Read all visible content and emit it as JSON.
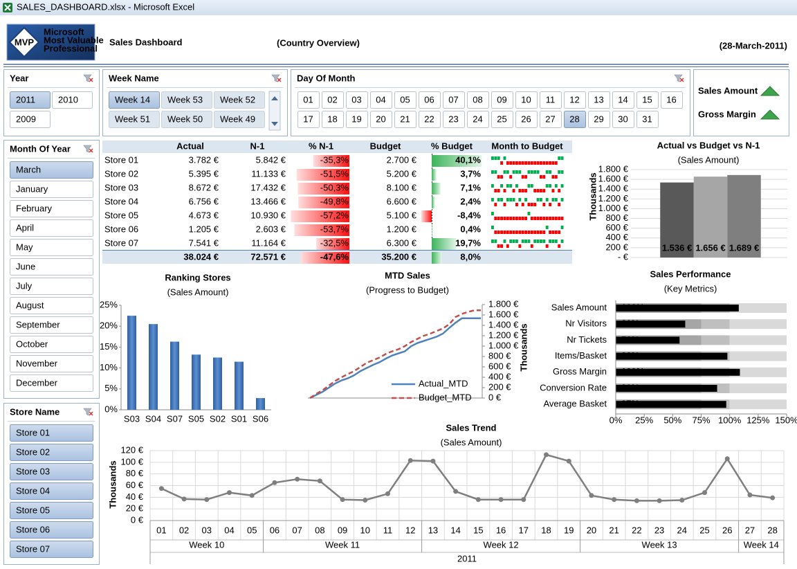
{
  "window": {
    "title": "SALES_DASHBOARD.xlsx - Microsoft Excel"
  },
  "header": {
    "logo": {
      "badge": "MVP",
      "lines": [
        "Microsoft",
        "Most Valuable",
        "Professional"
      ]
    },
    "title": "Sales  Dashboard",
    "subtitle": "(Country Overview)",
    "date": "(28-March-2011)"
  },
  "slicers": {
    "year": {
      "title": "Year",
      "items": [
        "2011",
        "2010",
        "2009"
      ],
      "selected": [
        0
      ]
    },
    "week": {
      "title": "Week Name",
      "items": [
        "Week 14",
        "Week 53",
        "Week 52",
        "Week 51",
        "Week 50",
        "Week 49"
      ],
      "selected": [
        0
      ],
      "dimmed": [
        1,
        2,
        3,
        4,
        5
      ]
    },
    "day": {
      "title": "Day Of Month",
      "items": [
        "01",
        "02",
        "03",
        "04",
        "05",
        "06",
        "07",
        "08",
        "09",
        "10",
        "11",
        "12",
        "13",
        "14",
        "15",
        "16",
        "17",
        "18",
        "19",
        "20",
        "21",
        "22",
        "23",
        "24",
        "25",
        "26",
        "27",
        "28",
        "29",
        "30",
        "31"
      ],
      "selected": [
        27
      ]
    },
    "month": {
      "title": "Month Of Year",
      "items": [
        "March",
        "January",
        "February",
        "April",
        "May",
        "June",
        "July",
        "August",
        "September",
        "October",
        "November",
        "December"
      ],
      "selected": [
        0
      ]
    },
    "store": {
      "title": "Store Name",
      "items": [
        "Store 01",
        "Store 02",
        "Store 03",
        "Store 04",
        "Store 05",
        "Store 06",
        "Store 07"
      ],
      "selected": [
        0,
        1,
        2,
        3,
        4,
        5,
        6
      ]
    }
  },
  "indicators": {
    "items": [
      {
        "label": "Sales Amount",
        "trend": "up",
        "color": "#3fa34d"
      },
      {
        "label": "Gross Margin",
        "trend": "up",
        "color": "#3fa34d"
      }
    ]
  },
  "table": {
    "headers": [
      "Actual",
      "N-1",
      "% N-1",
      "Budget",
      "% Budget",
      "Month to Budget"
    ],
    "stores": [
      "Store 01",
      "Store 02",
      "Store 03",
      "Store 04",
      "Store 05",
      "Store 06",
      "Store 07"
    ],
    "actual": [
      "3.782 €",
      "5.395 €",
      "8.672 €",
      "6.756 €",
      "4.673 €",
      "1.205 €",
      "7.541 €"
    ],
    "n1": [
      "5.842 €",
      "11.133 €",
      "17.432 €",
      "13.466 €",
      "10.930 €",
      "2.603 €",
      "11.164 €"
    ],
    "pct_n1": {
      "values": [
        -35.3,
        -51.5,
        -50.3,
        -49.8,
        -57.2,
        -53.7,
        -32.5
      ],
      "value_labels": [
        "-35,3%",
        "-51,5%",
        "-50,3%",
        "-49,8%",
        "-57,2%",
        "-53,7%",
        "-32,5%"
      ]
    },
    "budget": [
      "2.700 €",
      "5.200 €",
      "8.100 €",
      "6.600 €",
      "5.100 €",
      "1.200 €",
      "6.300 €"
    ],
    "pct_budget": {
      "values": [
        40.1,
        3.7,
        7.1,
        2.4,
        -8.4,
        0.4,
        19.7
      ],
      "value_labels": [
        "40,1%",
        "3,7%",
        "7,1%",
        "2,4%",
        "-8,4%",
        "0,4%",
        "19,7%"
      ]
    },
    "month_to_budget": [
      [
        1,
        1,
        1,
        -1,
        1,
        -1,
        -1,
        -1,
        -1,
        -1,
        -1,
        -1,
        -1,
        -1,
        -1,
        -1,
        -1,
        -1,
        -1,
        -1,
        -1,
        -1,
        1,
        1
      ],
      [
        1,
        1,
        -1,
        -1,
        1,
        1,
        -1,
        1,
        1,
        1,
        -1,
        -1,
        1,
        1,
        1,
        1,
        -1,
        -1,
        1,
        1,
        -1,
        -1,
        1,
        1
      ],
      [
        1,
        -1,
        -1,
        1,
        -1,
        1,
        1,
        -1,
        1,
        -1,
        -1,
        -1,
        1,
        1,
        -1,
        -1,
        -1,
        -1,
        1,
        1,
        -1,
        1,
        -1,
        1
      ],
      [
        1,
        -1,
        1,
        1,
        -1,
        1,
        1,
        1,
        -1,
        1,
        -1,
        1,
        -1,
        -1,
        -1,
        1,
        1,
        -1,
        1,
        -1,
        1,
        1,
        -1,
        1
      ],
      [
        1,
        -1,
        -1,
        -1,
        -1,
        -1,
        -1,
        -1,
        -1,
        -1,
        -1,
        -1,
        1,
        -1,
        -1,
        -1,
        -1,
        -1,
        -1,
        -1,
        -1,
        -1,
        -1,
        -1
      ],
      [
        1,
        -1,
        -1,
        -1,
        -1,
        -1,
        -1,
        -1,
        -1,
        -1,
        -1,
        -1,
        -1,
        -1,
        -1,
        -1,
        -1,
        -1,
        1,
        -1,
        -1,
        -1,
        -1,
        1
      ],
      [
        1,
        1,
        -1,
        -1,
        1,
        -1,
        1,
        1,
        1,
        -1,
        1,
        1,
        1,
        -1,
        1,
        1,
        1,
        1,
        -1,
        1,
        1,
        1,
        -1,
        1
      ]
    ],
    "total": {
      "actual": "38.024 €",
      "n1": "72.571 €",
      "pct_n1": {
        "value": -47.6,
        "label": "-47,6%"
      },
      "budget": "35.200 €",
      "pct_budget": {
        "value": 8.0,
        "label": "8,0%"
      }
    }
  },
  "charts": {
    "actual_vs_budget": {
      "type": "bar",
      "title": "Actual vs Budget vs N-1",
      "subtitle": "(Sales Amount)",
      "y_label": "Thousands",
      "values": [
        1536,
        1656,
        1689
      ],
      "value_labels": [
        "1.536 €",
        "1.656 €",
        "1.689 €"
      ],
      "colors": [
        "#595959",
        "#a6a6a6",
        "#7f7f7f"
      ],
      "ylim": [
        0,
        1800
      ],
      "grid": true,
      "yticks": [
        {
          "value": 0,
          "label": "- €"
        },
        {
          "value": 200,
          "label": "200 €"
        },
        {
          "value": 400,
          "label": "400 €"
        },
        {
          "value": 600,
          "label": "600 €"
        },
        {
          "value": 800,
          "label": "800 €"
        },
        {
          "value": 1000,
          "label": "1.000 €"
        },
        {
          "value": 1200,
          "label": "1.200 €"
        },
        {
          "value": 1400,
          "label": "1.400 €"
        },
        {
          "value": 1600,
          "label": "1.600 €"
        },
        {
          "value": 1800,
          "label": "1.800 €"
        }
      ]
    },
    "ranking": {
      "type": "bar",
      "title": "Ranking Stores",
      "subtitle": "(Sales Amount)",
      "categories": [
        "S03",
        "S04",
        "S07",
        "S05",
        "S02",
        "S01",
        "S06"
      ],
      "values": [
        22.5,
        20.5,
        16.3,
        13.2,
        12.5,
        11.5,
        2.8
      ],
      "color": "#4f81bd",
      "ylim": [
        0,
        25
      ],
      "yticks": [
        {
          "value": 0,
          "label": "0%"
        },
        {
          "value": 5,
          "label": "5%"
        },
        {
          "value": 10,
          "label": "10%"
        },
        {
          "value": 15,
          "label": "15%"
        },
        {
          "value": 20,
          "label": "20%"
        },
        {
          "value": 25,
          "label": "25%"
        }
      ]
    },
    "mtd": {
      "type": "line",
      "title": "MTD Sales",
      "subtitle": "(Progress to Budget)",
      "y_label": "Thousands",
      "axis_side": "right",
      "series": [
        {
          "name": "Actual_MTD",
          "color": "#4f81bd",
          "dash": false,
          "values": [
            0,
            60,
            120,
            200,
            280,
            340,
            380,
            440,
            520,
            580,
            640,
            690,
            760,
            820,
            860,
            900,
            1000,
            1060,
            1100,
            1140,
            1180,
            1240,
            1350,
            1450,
            1536,
            1536,
            1536,
            1536
          ]
        },
        {
          "name": "Budget_MTD",
          "color": "#c0504d",
          "dash": true,
          "values": [
            0,
            80,
            150,
            240,
            330,
            400,
            460,
            520,
            600,
            680,
            730,
            780,
            850,
            900,
            940,
            1000,
            1080,
            1140,
            1200,
            1240,
            1290,
            1340,
            1420,
            1560,
            1620,
            1660,
            1689,
            1689
          ]
        }
      ],
      "ylim": [
        0,
        1800
      ],
      "yticks": [
        {
          "value": 0,
          "label": "0 €"
        },
        {
          "value": 200,
          "label": "200 €"
        },
        {
          "value": 400,
          "label": "400 €"
        },
        {
          "value": 600,
          "label": "600 €"
        },
        {
          "value": 800,
          "label": "800 €"
        },
        {
          "value": 1000,
          "label": "1.000 €"
        },
        {
          "value": 1200,
          "label": "1.200 €"
        },
        {
          "value": 1400,
          "label": "1.400 €"
        },
        {
          "value": 1600,
          "label": "1.600 €"
        },
        {
          "value": 1800,
          "label": "1.800 €"
        }
      ]
    },
    "performance": {
      "type": "bullet",
      "title": "Sales Performance",
      "subtitle": "(Key Metrics)",
      "categories": [
        "Sales Amount",
        "Nr Visitors",
        "Nr Tickets",
        "Items/Basket",
        "Gross Margin",
        "Conversion Rate",
        "Average Basket"
      ],
      "values": [
        108,
        61,
        56,
        98,
        109,
        89,
        97
      ],
      "value_labels": [
        "108%",
        "61%",
        "56%",
        "98%",
        "109%",
        "89%",
        "97%"
      ],
      "color": "#000000",
      "bands": [
        {
          "to": 75,
          "color": "#a6a6a6"
        },
        {
          "to": 100,
          "color": "#bfbfbf"
        },
        {
          "to": 150,
          "color": "#d9d9d9"
        }
      ],
      "xlim": [
        0,
        150
      ],
      "xticks": [
        {
          "value": 0,
          "label": "0%"
        },
        {
          "value": 25,
          "label": "25%"
        },
        {
          "value": 50,
          "label": "50%"
        },
        {
          "value": 75,
          "label": "75%"
        },
        {
          "value": 100,
          "label": "100%"
        },
        {
          "value": 125,
          "label": "125%"
        },
        {
          "value": 150,
          "label": "150%"
        }
      ]
    },
    "trend": {
      "type": "line",
      "title": "Sales Trend",
      "subtitle": "(Sales Amount)",
      "y_label": "Thousands",
      "categories": [
        "01",
        "02",
        "03",
        "04",
        "05",
        "06",
        "07",
        "08",
        "09",
        "10",
        "11",
        "12",
        "13",
        "14",
        "15",
        "16",
        "17",
        "18",
        "19",
        "20",
        "21",
        "22",
        "23",
        "24",
        "25",
        "26",
        "27",
        "28"
      ],
      "groups": [
        {
          "label": "Week 10",
          "span": 5
        },
        {
          "label": "Week 11",
          "span": 7
        },
        {
          "label": "Week 12",
          "span": 7
        },
        {
          "label": "Week 13",
          "span": 7
        },
        {
          "label": "Week 14",
          "span": 2
        }
      ],
      "group_title": "2011",
      "values": [
        55,
        37,
        36,
        48,
        43,
        65,
        71,
        68,
        36,
        35,
        46,
        103,
        102,
        50,
        36,
        36,
        36,
        113,
        102,
        43,
        36,
        34,
        34,
        35,
        48,
        106,
        44,
        39
      ],
      "color": "#7f7f7f",
      "grid": true,
      "ylim": [
        0,
        120
      ],
      "yticks": [
        {
          "value": 0,
          "label": "0 €"
        },
        {
          "value": 20,
          "label": "20 €"
        },
        {
          "value": 40,
          "label": "40 €"
        },
        {
          "value": 60,
          "label": "60 €"
        },
        {
          "value": 80,
          "label": "80 €"
        },
        {
          "value": 100,
          "label": "100 €"
        },
        {
          "value": 120,
          "label": "120 €"
        }
      ]
    }
  }
}
